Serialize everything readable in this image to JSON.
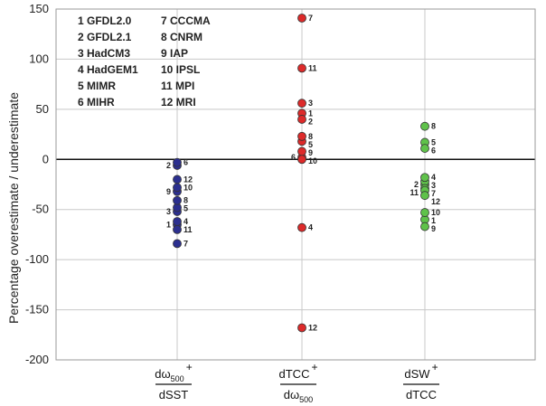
{
  "chart_data": {
    "type": "scatter",
    "ylabel": "Percentage overestimate / underestimate",
    "ylim": [
      -200,
      150
    ],
    "yticks": [
      150,
      100,
      50,
      0,
      -50,
      -100,
      -150,
      -200
    ],
    "grid": true,
    "legend": {
      "placement": "top-left",
      "entries": [
        "1 GFDL2.0",
        "2 GFDL2.1",
        "3 HadCM3",
        "4 HadGEM1",
        "5 MIMR",
        "6 MIHR",
        "7 CCCMA",
        "8 CNRM",
        "9 IAP",
        "10 IPSL",
        "11 MPI",
        "12 MRI"
      ]
    },
    "categories": [
      {
        "num": "dω",
        "sub": "500",
        "sup": "+",
        "den": "dSST",
        "den_sub": ""
      },
      {
        "num": "dTCC",
        "sub": "",
        "sup": "+",
        "den": "dω",
        "den_sub": "500"
      },
      {
        "num": "dSW",
        "sub": "",
        "sup": "+",
        "den": "dTCC",
        "den_sub": ""
      }
    ],
    "series": [
      {
        "color": "#2b2f8f",
        "points": [
          {
            "label": "1",
            "y": -65
          },
          {
            "label": "2",
            "y": -6
          },
          {
            "label": "3",
            "y": -52
          },
          {
            "label": "4",
            "y": -62
          },
          {
            "label": "5",
            "y": -48
          },
          {
            "label": "6",
            "y": -3
          },
          {
            "label": "7",
            "y": -84
          },
          {
            "label": "8",
            "y": -41
          },
          {
            "label": "9",
            "y": -32
          },
          {
            "label": "10",
            "y": -28
          },
          {
            "label": "11",
            "y": -70
          },
          {
            "label": "12",
            "y": -20
          }
        ]
      },
      {
        "color": "#dd2a2a",
        "points": [
          {
            "label": "1",
            "y": 46
          },
          {
            "label": "2",
            "y": 40
          },
          {
            "label": "3",
            "y": 56
          },
          {
            "label": "4",
            "y": -68
          },
          {
            "label": "5",
            "y": 18
          },
          {
            "label": "6",
            "y": 2
          },
          {
            "label": "7",
            "y": 141
          },
          {
            "label": "8",
            "y": 23
          },
          {
            "label": "9",
            "y": 8
          },
          {
            "label": "10",
            "y": 0
          },
          {
            "label": "11",
            "y": 91
          },
          {
            "label": "12",
            "y": -168
          }
        ]
      },
      {
        "color": "#5fc24a",
        "points": [
          {
            "label": "1",
            "y": -60
          },
          {
            "label": "2",
            "y": -25
          },
          {
            "label": "3",
            "y": -22
          },
          {
            "label": "4",
            "y": -18
          },
          {
            "label": "5",
            "y": 17
          },
          {
            "label": "6",
            "y": 11
          },
          {
            "label": "7",
            "y": -29
          },
          {
            "label": "8",
            "y": 33
          },
          {
            "label": "9",
            "y": -67
          },
          {
            "label": "10",
            "y": -53
          },
          {
            "label": "11",
            "y": -31
          },
          {
            "label": "12",
            "y": -36
          }
        ]
      }
    ]
  }
}
